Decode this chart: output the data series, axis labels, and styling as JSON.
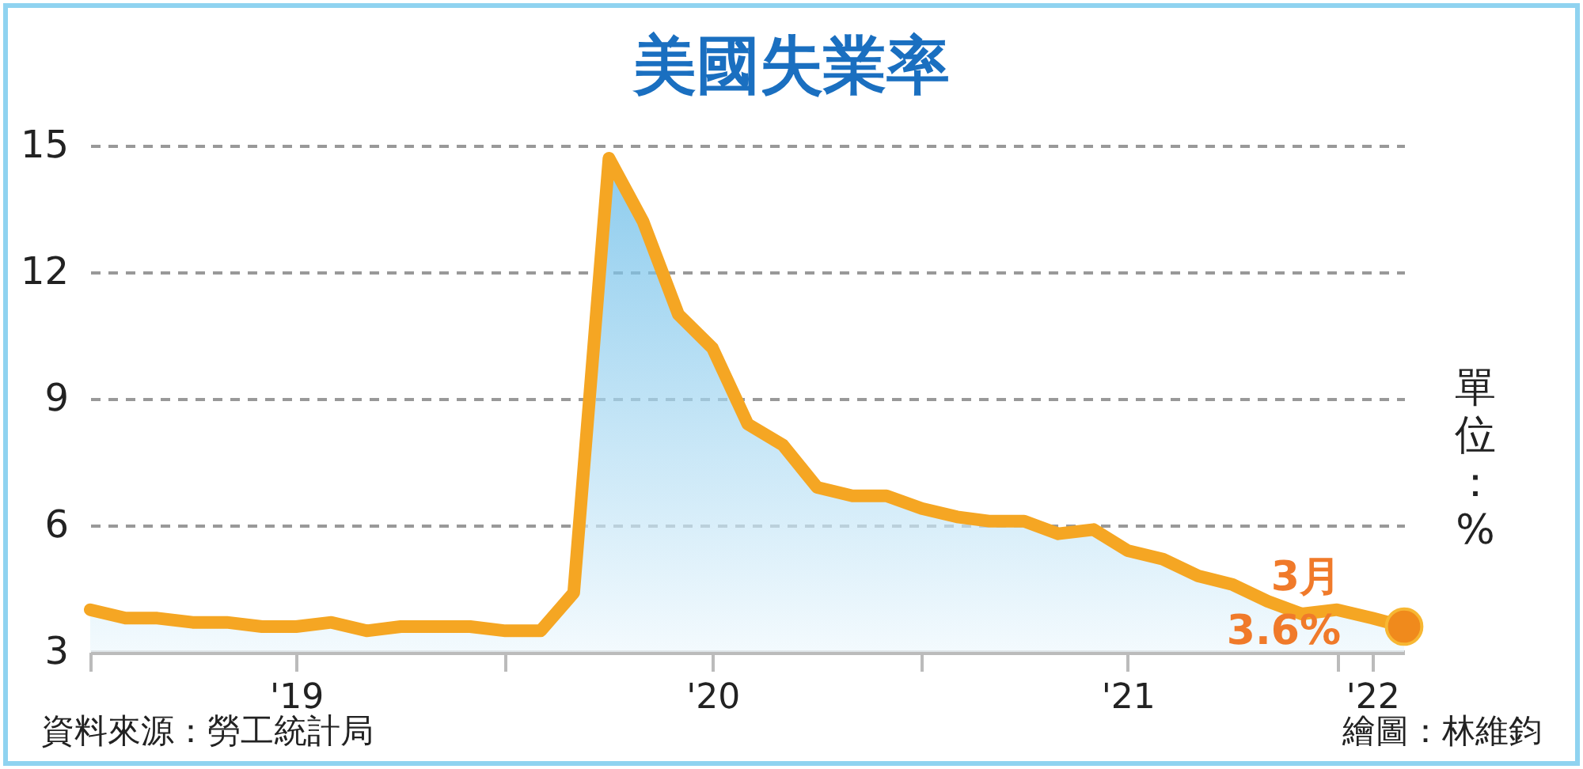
{
  "chart_data": {
    "type": "area",
    "title": "美國失業率",
    "ylabel": "單位：%",
    "x": [
      "2019-01",
      "2019-02",
      "2019-03",
      "2019-04",
      "2019-05",
      "2019-06",
      "2019-07",
      "2019-08",
      "2019-09",
      "2019-10",
      "2019-11",
      "2019-12",
      "2020-01",
      "2020-02",
      "2020-03",
      "2020-04",
      "2020-05",
      "2020-06",
      "2020-07",
      "2020-08",
      "2020-09",
      "2020-10",
      "2020-11",
      "2020-12",
      "2021-01",
      "2021-02",
      "2021-03",
      "2021-04",
      "2021-05",
      "2021-06",
      "2021-07",
      "2021-08",
      "2021-09",
      "2021-10",
      "2021-11",
      "2021-12",
      "2022-01",
      "2022-02",
      "2022-03"
    ],
    "series": [
      {
        "color": "#f5a623",
        "values": [
          4.0,
          3.8,
          3.8,
          3.7,
          3.7,
          3.6,
          3.6,
          3.7,
          3.5,
          3.6,
          3.6,
          3.6,
          3.5,
          3.5,
          4.4,
          14.7,
          13.2,
          11.0,
          10.2,
          8.4,
          7.9,
          6.9,
          6.7,
          6.7,
          6.4,
          6.2,
          6.1,
          6.1,
          5.8,
          5.9,
          5.4,
          5.2,
          4.8,
          4.6,
          4.2,
          3.9,
          4.0,
          3.8,
          3.6
        ]
      }
    ],
    "xlim": [
      "2019-01",
      "2022-03"
    ],
    "xticks": [
      {
        "value": "2019-01",
        "label": null
      },
      {
        "value": "2019-07",
        "label": "'19"
      },
      {
        "value": "2020-01",
        "label": null
      },
      {
        "value": "2020-07",
        "label": "'20"
      },
      {
        "value": "2021-01",
        "label": null
      },
      {
        "value": "2021-07",
        "label": "'21"
      },
      {
        "value": "2022-01",
        "label": null
      },
      {
        "value": "2022-02",
        "label": "'22"
      }
    ],
    "ylim": [
      3,
      15
    ],
    "yticks": [
      3,
      6,
      9,
      12,
      15
    ],
    "grid": "y",
    "line_style": "dashed",
    "annotations": [
      {
        "text": "3月\n3.6%",
        "x": "2022-03",
        "y": 3.6
      },
      "資料來源：勞工統計局",
      "繪圖：林維鈞"
    ]
  }
}
